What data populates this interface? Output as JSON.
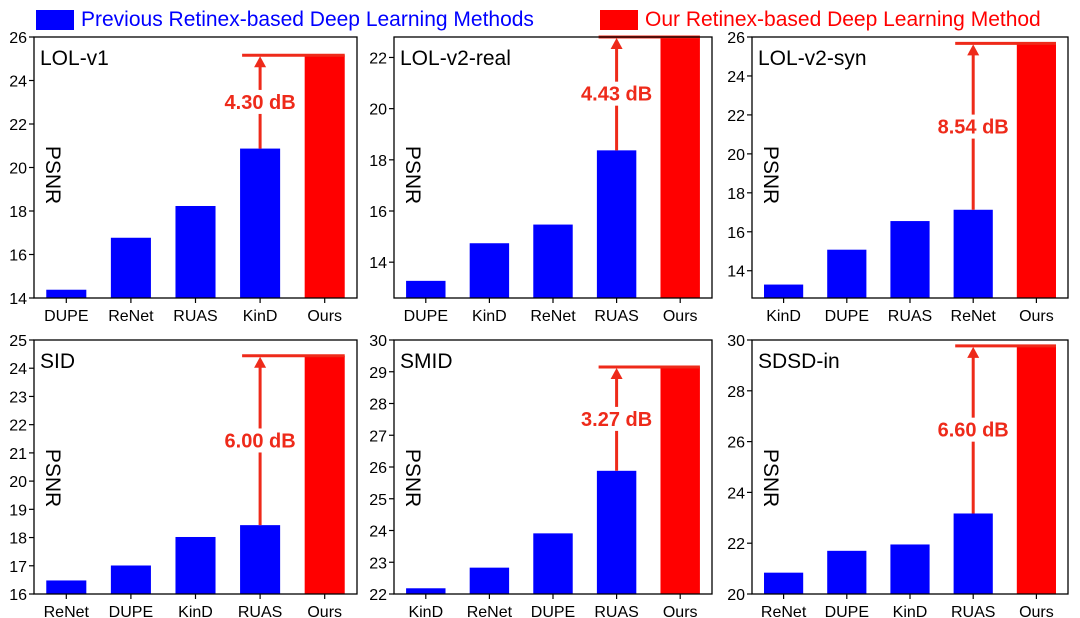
{
  "legend": [
    {
      "label": "Previous Retinex-based Deep Learning Methods",
      "color": "#0000ff"
    },
    {
      "label": "Our Retinex-based Deep Learning Method",
      "color": "#ff0000"
    }
  ],
  "colors": {
    "previous": "#0000ff",
    "ours": "#ff0000",
    "annotation": "#ee2a1a"
  },
  "chart_data": [
    {
      "type": "bar",
      "title": "LOL-v1",
      "xlabel": "",
      "ylabel": "PSNR",
      "categories": [
        "DUPE",
        "ReNet",
        "RUAS",
        "KinD",
        "Ours"
      ],
      "values": [
        14.38,
        16.77,
        18.23,
        20.87,
        25.16
      ],
      "ylim": [
        14,
        26
      ],
      "yticks": [
        14,
        16,
        18,
        20,
        22,
        24,
        26
      ],
      "annotation": "4.30 dB",
      "grid": false
    },
    {
      "type": "bar",
      "title": "LOL-v2-real",
      "xlabel": "",
      "ylabel": "PSNR",
      "categories": [
        "DUPE",
        "KinD",
        "ReNet",
        "RUAS",
        "Ours"
      ],
      "values": [
        13.27,
        14.74,
        15.47,
        18.37,
        22.8
      ],
      "ylim": [
        12.6,
        22.8
      ],
      "yticks": [
        14,
        16,
        18,
        20,
        22
      ],
      "annotation": "4.43 dB",
      "grid": false
    },
    {
      "type": "bar",
      "title": "LOL-v2-syn",
      "xlabel": "",
      "ylabel": "PSNR",
      "categories": [
        "KinD",
        "DUPE",
        "RUAS",
        "ReNet",
        "Ours"
      ],
      "values": [
        13.29,
        15.08,
        16.55,
        17.13,
        25.67
      ],
      "ylim": [
        12.6,
        26
      ],
      "yticks": [
        14,
        16,
        18,
        20,
        22,
        24,
        26
      ],
      "annotation": "8.54 dB",
      "grid": false
    },
    {
      "type": "bar",
      "title": "SID",
      "xlabel": "",
      "ylabel": "PSNR",
      "categories": [
        "ReNet",
        "DUPE",
        "KinD",
        "RUAS",
        "Ours"
      ],
      "values": [
        16.48,
        17.01,
        18.02,
        18.44,
        24.44
      ],
      "ylim": [
        16,
        25
      ],
      "yticks": [
        16,
        17,
        18,
        19,
        20,
        21,
        22,
        23,
        24,
        25
      ],
      "annotation": "6.00 dB",
      "grid": false
    },
    {
      "type": "bar",
      "title": "SMID",
      "xlabel": "",
      "ylabel": "PSNR",
      "categories": [
        "KinD",
        "ReNet",
        "DUPE",
        "RUAS",
        "Ours"
      ],
      "values": [
        22.18,
        22.83,
        23.91,
        25.88,
        29.15
      ],
      "ylim": [
        22,
        30
      ],
      "yticks": [
        22,
        23,
        24,
        25,
        26,
        27,
        28,
        29,
        30
      ],
      "annotation": "3.27 dB",
      "grid": false
    },
    {
      "type": "bar",
      "title": "SDSD-in",
      "xlabel": "",
      "ylabel": "PSNR",
      "categories": [
        "ReNet",
        "DUPE",
        "KinD",
        "RUAS",
        "Ours"
      ],
      "values": [
        20.84,
        21.7,
        21.95,
        23.17,
        29.77
      ],
      "ylim": [
        20,
        30
      ],
      "yticks": [
        20,
        22,
        24,
        26,
        28,
        30
      ],
      "annotation": "6.60 dB",
      "grid": false
    }
  ]
}
